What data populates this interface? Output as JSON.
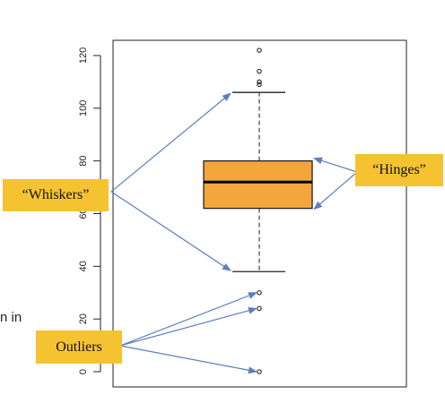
{
  "chart_data": {
    "type": "boxplot",
    "title": "",
    "xlabel": "",
    "ylabel": "",
    "ylim": [
      -5,
      125
    ],
    "yticks": [
      0,
      20,
      40,
      60,
      80,
      100,
      120
    ],
    "ytick_labels": [
      "0",
      "20",
      "40",
      "60",
      "80",
      "100",
      "120"
    ],
    "box": {
      "lower_whisker": 38,
      "lower_hinge": 62,
      "median": 72,
      "upper_hinge": 80,
      "upper_whisker": 106
    },
    "outliers": [
      122,
      114,
      110,
      109,
      30,
      24,
      0
    ],
    "box_color": "#f4a53b"
  },
  "annotations": {
    "whiskers": "“Whiskers”",
    "hinges": "“Hinges”",
    "outliers": "Outliers"
  },
  "stray_text": "n in",
  "colors": {
    "label_fill": "#f5c332",
    "arrow": "#5b7fbf"
  }
}
